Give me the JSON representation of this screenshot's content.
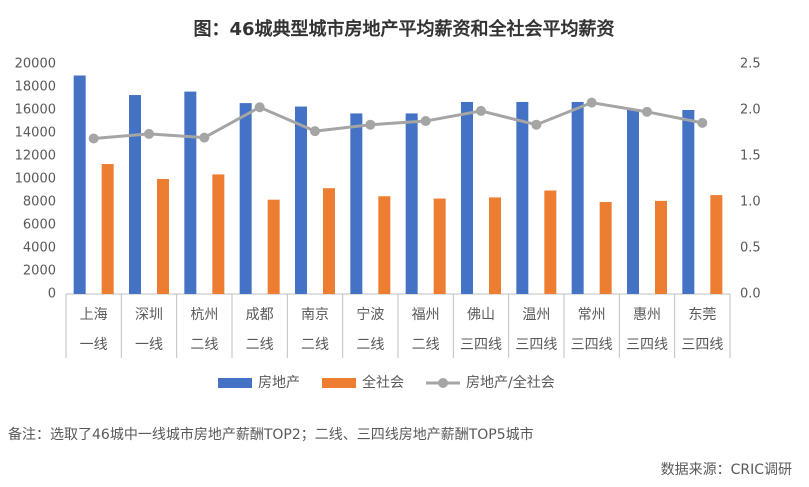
{
  "chart_data": {
    "type": "bar",
    "title": "图：46城典型城市房地产平均薪资和全社会平均薪资",
    "categories": [
      "上海",
      "深圳",
      "杭州",
      "成都",
      "南京",
      "宁波",
      "福州",
      "佛山",
      "温州",
      "常州",
      "惠州",
      "东莞"
    ],
    "tiers": [
      "一线",
      "一线",
      "二线",
      "二线",
      "二线",
      "二线",
      "二线",
      "三四线",
      "三四线",
      "三四线",
      "三四线",
      "三四线"
    ],
    "series": [
      {
        "name": "房地产",
        "color": "#4472c4",
        "type": "bar",
        "values": [
          19000,
          17300,
          17600,
          16600,
          16300,
          15700,
          15700,
          16700,
          16700,
          16700,
          16000,
          16000
        ]
      },
      {
        "name": "全社会",
        "color": "#ed7d31",
        "type": "bar",
        "values": [
          11300,
          10000,
          10400,
          8200,
          9200,
          8500,
          8300,
          8400,
          9000,
          8000,
          8100,
          8600
        ]
      },
      {
        "name": "房地产/全社会",
        "color": "#a5a5a5",
        "type": "line",
        "axis": "y2",
        "values": [
          1.69,
          1.74,
          1.7,
          2.03,
          1.77,
          1.84,
          1.88,
          1.99,
          1.84,
          2.08,
          1.98,
          1.86
        ]
      }
    ],
    "ylim": [
      0,
      20000
    ],
    "yticks": [
      0,
      2000,
      4000,
      6000,
      8000,
      10000,
      12000,
      14000,
      16000,
      18000,
      20000
    ],
    "y2lim": [
      0,
      2.5
    ],
    "y2ticks": [
      {
        "value": 0,
        "label": "0.0"
      },
      0.5,
      {
        "value": 1,
        "label": "1.0"
      },
      1.5,
      {
        "value": 2,
        "label": "2.0"
      },
      2.5
    ],
    "note": "备注：选取了46城中一线城市房地产薪酬TOP2；二线、三四线房地产薪酬TOP5城市",
    "source": "数据来源：CRIC调研"
  }
}
